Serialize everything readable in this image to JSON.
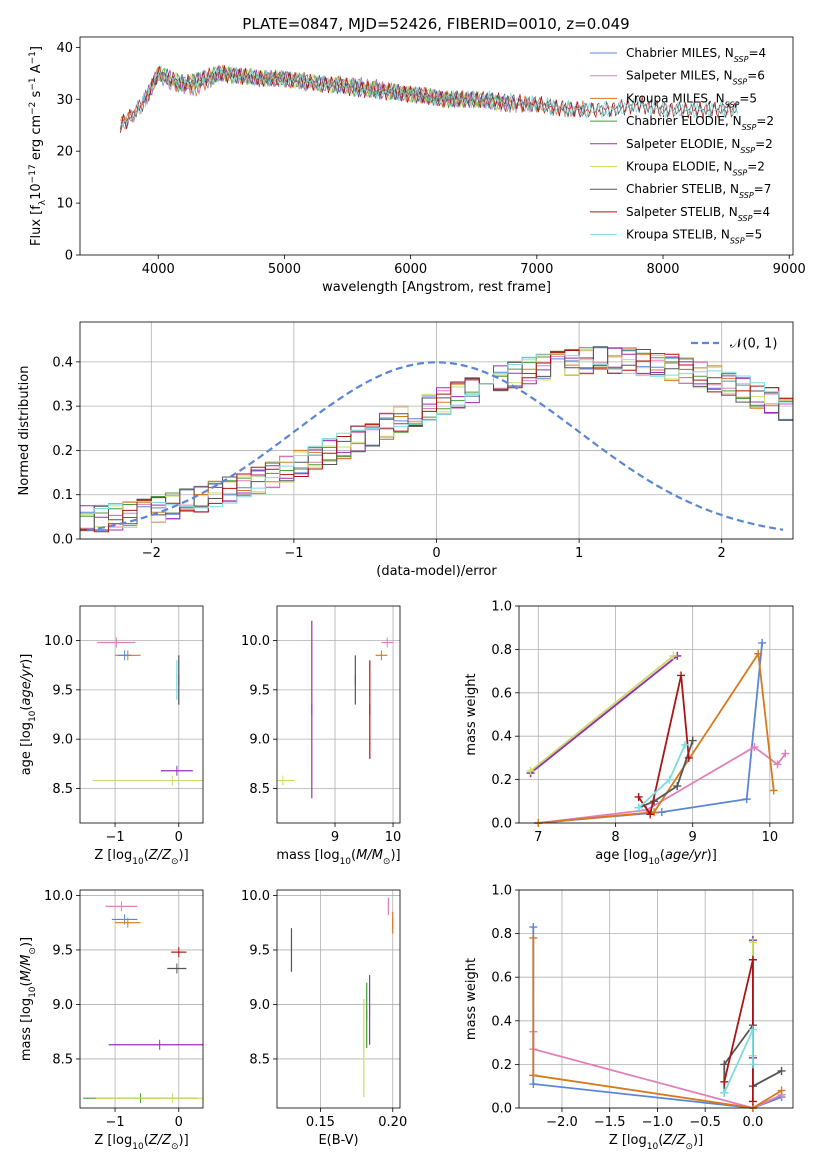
{
  "figure_title": "PLATE=0847, MJD=52426, FIBERID=0010, z=0.049",
  "colors": {
    "Chabrier MILES": "#5b86d6",
    "Salpeter MILES": "#e27fb8",
    "Kroupa MILES": "#d67a1e",
    "Chabrier ELODIE": "#4a9a3a",
    "Salpeter ELODIE": "#9b2fb5",
    "Kroupa ELODIE": "#c9dd6a",
    "Chabrier STELIB": "#555555",
    "Salpeter STELIB": "#aa1515",
    "Kroupa STELIB": "#7edbe0",
    "gaussian": "#5b86d6"
  },
  "chart_data": [
    {
      "id": "spectrum",
      "type": "line",
      "title": "PLATE=0847, MJD=52426, FIBERID=0010, z=0.049",
      "xlabel": "wavelength [Angstrom, rest frame]",
      "ylabel": "Flux [f_λ 10^-17 erg cm^-2 s^-1 A^-1]",
      "xlim": [
        3380,
        9030
      ],
      "ylim": [
        0,
        42
      ],
      "xticks": [
        4000,
        5000,
        6000,
        7000,
        8000,
        9000
      ],
      "yticks": [
        0,
        10,
        20,
        30,
        40
      ],
      "legend_position": "top-right",
      "series": [
        {
          "name": "Chabrier MILES, N_SSP=4",
          "label": "Chabrier MILES, N",
          "sub": "SSP",
          "suffix": "=4",
          "x": [
            3700,
            3800,
            3900,
            4000,
            4100,
            4300,
            4500,
            4800,
            5000,
            5200,
            5500,
            5800,
            6000,
            6300,
            6500,
            6800,
            7000,
            7200,
            7400
          ],
          "y": [
            25,
            27,
            30,
            35,
            33,
            32,
            35,
            34,
            34,
            33,
            33,
            32,
            31,
            30,
            30,
            29,
            29,
            28,
            28
          ]
        },
        {
          "name": "Salpeter MILES, N_SSP=6",
          "label": "Salpeter MILES, N",
          "sub": "SSP",
          "suffix": "=6",
          "x": [
            3700,
            3800,
            3900,
            4000,
            4100,
            4300,
            4500,
            4800,
            5000,
            5200,
            5500,
            5800,
            6000,
            6300,
            6500,
            6800,
            7000,
            7200,
            7400
          ],
          "y": [
            25,
            27,
            30,
            35,
            33,
            32,
            35,
            34,
            34,
            33,
            33,
            32,
            31,
            30,
            30,
            29,
            29,
            28,
            28
          ]
        },
        {
          "name": "Kroupa MILES, N_SSP=5",
          "label": "Kroupa MILES, N",
          "sub": "SSP",
          "suffix": "=5",
          "x": [
            3700,
            3800,
            3900,
            4000,
            4100,
            4300,
            4500,
            4800,
            5000,
            5200,
            5500,
            5800,
            6000,
            6300,
            6500,
            6800,
            7000,
            7200,
            7400
          ],
          "y": [
            25,
            27,
            30,
            35,
            33,
            32,
            35,
            34,
            34,
            33,
            33,
            32,
            31,
            30,
            30,
            29,
            29,
            28,
            28
          ]
        },
        {
          "name": "Chabrier ELODIE, N_SSP=2",
          "label": "Chabrier ELODIE, N",
          "sub": "SSP",
          "suffix": "=2",
          "x": [
            3900,
            4000,
            4200,
            4500,
            4800,
            5000,
            5300,
            5600,
            6000,
            6300,
            6500,
            6800
          ],
          "y": [
            30,
            35,
            33,
            35,
            34,
            34,
            33,
            32,
            31,
            30,
            30,
            29
          ]
        },
        {
          "name": "Salpeter ELODIE, N_SSP=2",
          "label": "Salpeter ELODIE, N",
          "sub": "SSP",
          "suffix": "=2",
          "x": [
            3900,
            4000,
            4200,
            4500,
            4800,
            5000,
            5300,
            5600,
            6000,
            6300,
            6500,
            6800
          ],
          "y": [
            30,
            35,
            33,
            35,
            34,
            34,
            33,
            32,
            31,
            30,
            30,
            29
          ]
        },
        {
          "name": "Kroupa ELODIE, N_SSP=2",
          "label": "Kroupa ELODIE, N",
          "sub": "SSP",
          "suffix": "=2",
          "x": [
            3900,
            4000,
            4200,
            4500,
            4800,
            5000,
            5300,
            5600,
            6000,
            6300,
            6500,
            6800
          ],
          "y": [
            30,
            35,
            33,
            35,
            34,
            34,
            33,
            32,
            31,
            30,
            30,
            29
          ]
        },
        {
          "name": "Chabrier STELIB, N_SSP=7",
          "label": "Chabrier STELIB, N",
          "sub": "SSP",
          "suffix": "=7",
          "x": [
            3700,
            3800,
            3900,
            4000,
            4200,
            4500,
            4800,
            5000,
            5300,
            5600,
            6000,
            6300,
            6600,
            7000,
            7300,
            7600,
            7800,
            8000,
            8200,
            8400,
            8600
          ],
          "y": [
            25,
            27,
            30,
            35,
            33,
            35,
            34,
            34,
            33,
            32,
            31,
            30,
            30,
            29,
            28,
            28,
            29,
            28,
            28,
            28,
            28
          ]
        },
        {
          "name": "Salpeter STELIB, N_SSP=4",
          "label": "Salpeter STELIB, N",
          "sub": "SSP",
          "suffix": "=4",
          "x": [
            3700,
            3800,
            3900,
            4000,
            4200,
            4500,
            4800,
            5000,
            5300,
            5600,
            6000,
            6300,
            6600,
            7000,
            7300,
            7600,
            7800,
            8000,
            8200,
            8400,
            8600
          ],
          "y": [
            25,
            27,
            30,
            35,
            33,
            35,
            34,
            34,
            33,
            32,
            31,
            30,
            30,
            29,
            28,
            28,
            29,
            28,
            28,
            28,
            28
          ]
        },
        {
          "name": "Kroupa STELIB, N_SSP=5",
          "label": "Kroupa STELIB, N",
          "sub": "SSP",
          "suffix": "=5",
          "x": [
            3700,
            3800,
            3900,
            4000,
            4200,
            4500,
            4800,
            5000,
            5300,
            5600,
            6000,
            6300,
            6600,
            7000,
            7300,
            7600,
            7800,
            8000,
            8200,
            8400,
            8600
          ],
          "y": [
            25,
            27,
            30,
            35,
            33,
            35,
            34,
            34,
            33,
            32,
            31,
            30,
            30,
            29,
            28,
            28,
            29,
            28,
            28,
            28,
            28
          ]
        }
      ]
    },
    {
      "id": "residuals",
      "type": "histogram",
      "xlabel": "(data-model)/error",
      "ylabel": "Normed distribution",
      "xlim": [
        -2.5,
        2.5
      ],
      "ylim": [
        0,
        0.49
      ],
      "xticks": [
        -2,
        -1,
        0,
        1,
        2
      ],
      "yticks": [
        0.0,
        0.1,
        0.2,
        0.3,
        0.4
      ],
      "legend_position": "top-right",
      "legend": "𝒩(0, 1)",
      "bin_edges_start": -2.5,
      "bin_width": 0.1,
      "reference_curve": {
        "name": "𝒩(0, 1)",
        "type": "gaussian",
        "mean": 0,
        "sigma": 1
      },
      "series_values_base": [
        0.045,
        0.046,
        0.05,
        0.055,
        0.06,
        0.067,
        0.074,
        0.083,
        0.091,
        0.101,
        0.111,
        0.122,
        0.133,
        0.145,
        0.158,
        0.17,
        0.183,
        0.197,
        0.211,
        0.225,
        0.24,
        0.255,
        0.27,
        0.284,
        0.298,
        0.312,
        0.325,
        0.338,
        0.35,
        0.361,
        0.371,
        0.38,
        0.388,
        0.394,
        0.399,
        0.402,
        0.404,
        0.404,
        0.402,
        0.399,
        0.394,
        0.388,
        0.38,
        0.371,
        0.361,
        0.35,
        0.338,
        0.325,
        0.312,
        0.298
      ]
    },
    {
      "id": "z_vs_age",
      "type": "errorbar",
      "xlabel": "Z [log10(Z/Z⊙)]",
      "ylabel": "age [log10(age/yr)]",
      "xlim": [
        -1.55,
        0.38
      ],
      "ylim": [
        8.15,
        10.35
      ],
      "xticks": [
        -1,
        0
      ],
      "yticks": [
        8.5,
        9.0,
        9.5,
        10.0
      ],
      "points": [
        {
          "series": "Salpeter MILES",
          "x": -0.98,
          "y": 9.98,
          "xerr": 0.3
        },
        {
          "series": "Kroupa MILES",
          "x": -0.8,
          "y": 9.85,
          "xerr": 0.2
        },
        {
          "series": "Chabrier MILES",
          "x": -0.85,
          "y": 9.85,
          "xerr": 0.1
        },
        {
          "series": "Chabrier STELIB",
          "x": 0.0,
          "y": 9.6,
          "yerr": 0.25
        },
        {
          "series": "Kroupa STELIB",
          "x": -0.03,
          "y": 9.6,
          "yerr": 0.2
        },
        {
          "series": "Salpeter ELODIE",
          "x": -0.03,
          "y": 8.68,
          "xerr": 0.25
        },
        {
          "series": "Kroupa ELODIE",
          "x": -0.1,
          "y": 8.58,
          "xerr": 1.25
        }
      ]
    },
    {
      "id": "mass_vs_age",
      "type": "errorbar",
      "xlabel": "mass [log10(M/M⊙)]",
      "ylabel": "",
      "xlim": [
        8.0,
        10.12
      ],
      "ylim": [
        8.15,
        10.35
      ],
      "xticks": [
        9,
        10
      ],
      "yticks": [
        8.5,
        9.0,
        9.5,
        10.0
      ],
      "points": [
        {
          "series": "Salpeter MILES",
          "x": 9.9,
          "y": 9.98,
          "xerr": 0.1
        },
        {
          "series": "Kroupa MILES",
          "x": 9.8,
          "y": 9.85,
          "xerr": 0.1
        },
        {
          "series": "Chabrier STELIB",
          "x": 9.35,
          "y": 9.6,
          "yerr": 0.25
        },
        {
          "series": "Salpeter STELIB",
          "x": 9.6,
          "y": 9.3,
          "yerr": 0.5
        },
        {
          "series": "Salpeter ELODIE",
          "x": 8.6,
          "y": 9.3,
          "yerr": 0.9
        },
        {
          "series": "Kroupa ELODIE",
          "x": 8.1,
          "y": 8.58,
          "xerr": 0.2
        }
      ]
    },
    {
      "id": "age_vs_weight",
      "type": "line",
      "xlabel": "age [log10(age/yr)]",
      "ylabel": "mass weight",
      "xlim": [
        6.75,
        10.3
      ],
      "ylim": [
        0,
        1
      ],
      "xticks": [
        7,
        8,
        9,
        10
      ],
      "yticks": [
        0.0,
        0.2,
        0.4,
        0.6,
        0.8,
        1.0
      ],
      "series": [
        {
          "name": "Chabrier MILES",
          "x": [
            7.0,
            8.6,
            9.7,
            9.9
          ],
          "y": [
            0.0,
            0.05,
            0.11,
            0.83
          ]
        },
        {
          "name": "Salpeter MILES",
          "x": [
            7.0,
            8.4,
            9.8,
            10.1,
            10.2
          ],
          "y": [
            0.0,
            0.06,
            0.35,
            0.27,
            0.32
          ]
        },
        {
          "name": "Kroupa MILES",
          "x": [
            7.0,
            8.5,
            9.85,
            10.05
          ],
          "y": [
            0.0,
            0.05,
            0.78,
            0.15
          ]
        },
        {
          "name": "Chabrier ELODIE",
          "x": [
            6.9,
            8.8
          ],
          "y": [
            0.23,
            0.77
          ]
        },
        {
          "name": "Salpeter ELODIE",
          "x": [
            6.9,
            8.8
          ],
          "y": [
            0.23,
            0.77
          ]
        },
        {
          "name": "Kroupa ELODIE",
          "x": [
            6.9,
            8.75
          ],
          "y": [
            0.24,
            0.77
          ]
        },
        {
          "name": "Chabrier STELIB",
          "x": [
            8.3,
            8.5,
            8.8,
            9.0
          ],
          "y": [
            0.07,
            0.1,
            0.17,
            0.38
          ]
        },
        {
          "name": "Salpeter STELIB",
          "x": [
            8.3,
            8.45,
            8.85,
            8.95
          ],
          "y": [
            0.12,
            0.04,
            0.68,
            0.3
          ]
        },
        {
          "name": "Kroupa STELIB",
          "x": [
            8.3,
            8.7,
            8.9
          ],
          "y": [
            0.07,
            0.2,
            0.36
          ]
        }
      ]
    },
    {
      "id": "z_vs_mass",
      "type": "errorbar",
      "xlabel": "Z [log10(Z/Z⊙)]",
      "ylabel": "mass [log10(M/M⊙)]",
      "xlim": [
        -1.55,
        0.38
      ],
      "ylim": [
        8.05,
        10.05
      ],
      "xticks": [
        -1,
        0
      ],
      "yticks": [
        8.5,
        9.0,
        9.5,
        10.0
      ],
      "points": [
        {
          "series": "Salpeter MILES",
          "x": -0.9,
          "y": 9.9,
          "xerr": 0.25
        },
        {
          "series": "Chabrier MILES",
          "x": -0.85,
          "y": 9.78,
          "xerr": 0.2
        },
        {
          "series": "Kroupa MILES",
          "x": -0.8,
          "y": 9.75,
          "xerr": 0.2
        },
        {
          "series": "Salpeter STELIB",
          "x": 0.0,
          "y": 9.48,
          "xerr": 0.12
        },
        {
          "series": "Chabrier STELIB",
          "x": -0.03,
          "y": 9.33,
          "xerr": 0.15
        },
        {
          "series": "Salpeter ELODIE",
          "x": -0.3,
          "y": 8.63,
          "xerr": 0.8
        },
        {
          "series": "Chabrier ELODIE",
          "x": -0.6,
          "y": 8.14,
          "xerr": 0.9
        },
        {
          "series": "Kroupa ELODIE",
          "x": -0.1,
          "y": 8.14,
          "xerr": 1.2
        }
      ]
    },
    {
      "id": "ebv_vs_mass",
      "type": "errorbar",
      "xlabel": "E(B-V)",
      "ylabel": "",
      "xlim": [
        0.12,
        0.205
      ],
      "ylim": [
        8.05,
        10.05
      ],
      "xticks": [
        0.15,
        0.2
      ],
      "yticks": [
        8.5,
        9.0,
        9.5,
        10.0
      ],
      "points": [
        {
          "series": "Chabrier STELIB",
          "x": 0.13,
          "y": 9.5,
          "yerr": 0.2
        },
        {
          "series": "Chabrier ELODIE",
          "x": 0.182,
          "y": 8.9,
          "yerr": 0.3
        },
        {
          "series": "Salpeter ELODIE",
          "x": 0.184,
          "y": 8.95,
          "yerr": 0.32
        },
        {
          "series": "Kroupa ELODIE",
          "x": 0.18,
          "y": 8.6,
          "yerr": 0.45
        },
        {
          "series": "Salpeter MILES",
          "x": 0.197,
          "y": 9.9,
          "yerr": 0.08
        },
        {
          "series": "Kroupa MILES",
          "x": 0.2,
          "y": 9.75,
          "yerr": 0.1
        }
      ]
    },
    {
      "id": "z_vs_weight",
      "type": "line",
      "xlabel": "Z [log10(Z/Z⊙)]",
      "ylabel": "mass weight",
      "xlim": [
        -2.45,
        0.42
      ],
      "ylim": [
        0,
        1
      ],
      "xticks": [
        -2.0,
        -1.5,
        -1.0,
        -0.5,
        0.0
      ],
      "yticks": [
        0.0,
        0.2,
        0.4,
        0.6,
        0.8,
        1.0
      ],
      "series": [
        {
          "name": "Chabrier MILES",
          "x": [
            -2.3,
            -2.3,
            0.0,
            0.3
          ],
          "y": [
            0.83,
            0.11,
            0.0,
            0.05
          ]
        },
        {
          "name": "Salpeter MILES",
          "x": [
            -2.3,
            -2.3,
            0.0,
            0.3
          ],
          "y": [
            0.35,
            0.27,
            0.0,
            0.06
          ]
        },
        {
          "name": "Kroupa MILES",
          "x": [
            -2.3,
            -2.3,
            0.0,
            0.3
          ],
          "y": [
            0.78,
            0.15,
            0.0,
            0.08
          ]
        },
        {
          "name": "Chabrier ELODIE",
          "x": [
            0.0,
            0.0
          ],
          "y": [
            0.23,
            0.77
          ]
        },
        {
          "name": "Salpeter ELODIE",
          "x": [
            0.0,
            0.0
          ],
          "y": [
            0.23,
            0.77
          ]
        },
        {
          "name": "Kroupa ELODIE",
          "x": [
            0.0,
            0.0
          ],
          "y": [
            0.24,
            0.76
          ]
        },
        {
          "name": "Chabrier STELIB",
          "x": [
            -0.3,
            -0.3,
            0.0,
            0.0,
            0.3
          ],
          "y": [
            0.07,
            0.2,
            0.38,
            0.1,
            0.17
          ]
        },
        {
          "name": "Salpeter STELIB",
          "x": [
            -0.3,
            0.0,
            0.0
          ],
          "y": [
            0.12,
            0.68,
            0.03
          ]
        },
        {
          "name": "Kroupa STELIB",
          "x": [
            -0.3,
            0.0,
            0.0
          ],
          "y": [
            0.07,
            0.36,
            0.2
          ]
        }
      ]
    }
  ]
}
